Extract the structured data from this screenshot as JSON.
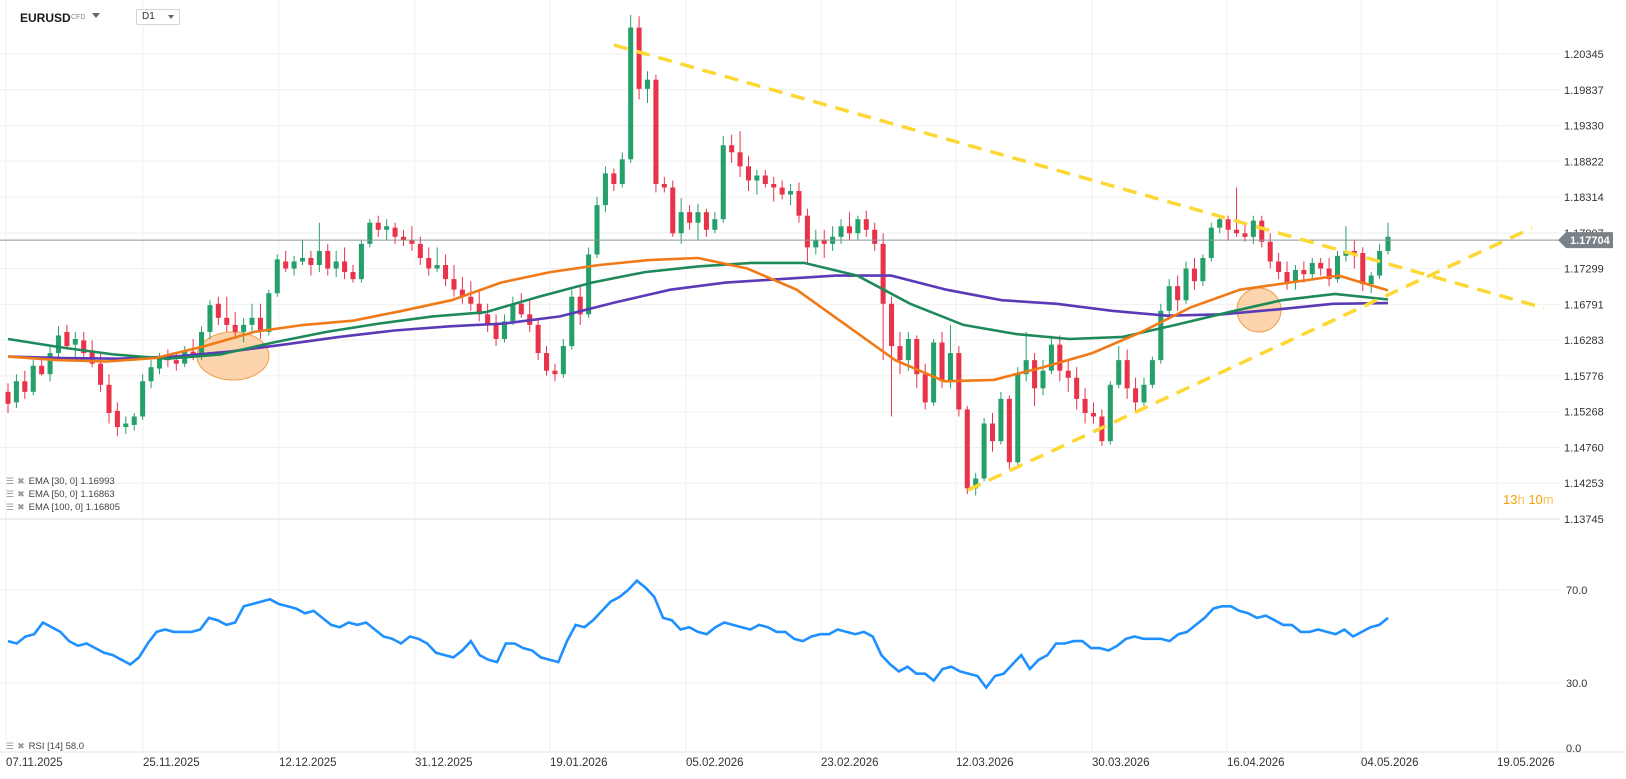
{
  "header": {
    "symbol": "EURUSD",
    "symbol_type": "CFD",
    "timeframe": "D1"
  },
  "price_axis_labels": [
    "1.20345",
    "1.19837",
    "1.19330",
    "1.18822",
    "1.18314",
    "1.17807",
    "1.17299",
    "1.16791",
    "1.16283",
    "1.15776",
    "1.15268",
    "1.14760",
    "1.14253",
    "1.13745"
  ],
  "current_price": {
    "label": "1.17704",
    "value": 1.17704,
    "color": "#7a8288"
  },
  "rsi_axis_labels": [
    "70.0",
    "30.0",
    "0.0"
  ],
  "date_labels": [
    "07.11.2025",
    "25.11.2025",
    "12.12.2025",
    "31.12.2025",
    "19.01.2026",
    "05.02.2026",
    "23.02.2026",
    "12.03.2026",
    "30.03.2026",
    "16.04.2026",
    "04.05.2026",
    "19.05.2026"
  ],
  "legend": {
    "ema30": "EMA [30, 0] 1.16993",
    "ema50": "EMA [50, 0] 1.16863",
    "ema100": "EMA [100, 0] 1.16805",
    "rsi": "RSI [14] 58.0"
  },
  "countdown": {
    "hours": "13",
    "h": "h",
    "minutes": "10",
    "m": "m"
  },
  "colors": {
    "up": "#26a06b",
    "down": "#e8334a",
    "ema30": "#f07a17",
    "ema50": "#1e8a5c",
    "ema100": "#5b3ab8",
    "rsi": "#1e90ff",
    "trend": "#fdd835",
    "highlight": "#f9b26b"
  },
  "chart_data": {
    "type": "candlestick",
    "symbol": "EURUSD",
    "timeframe": "D1",
    "ylim": [
      1.13745,
      1.20345
    ],
    "ohlc": [
      [
        1.1555,
        1.1567,
        1.1525,
        1.1538
      ],
      [
        1.154,
        1.158,
        1.1532,
        1.157
      ],
      [
        1.157,
        1.1585,
        1.1545,
        1.1555
      ],
      [
        1.1555,
        1.16,
        1.155,
        1.1592
      ],
      [
        1.1592,
        1.1602,
        1.1578,
        1.158
      ],
      [
        1.158,
        1.162,
        1.157,
        1.161
      ],
      [
        1.161,
        1.1648,
        1.16,
        1.1635
      ],
      [
        1.164,
        1.165,
        1.1615,
        1.162
      ],
      [
        1.1622,
        1.164,
        1.16,
        1.163
      ],
      [
        1.1628,
        1.164,
        1.1605,
        1.161
      ],
      [
        1.1612,
        1.1628,
        1.159,
        1.1595
      ],
      [
        1.1595,
        1.161,
        1.1555,
        1.1565
      ],
      [
        1.1565,
        1.158,
        1.151,
        1.1525
      ],
      [
        1.1528,
        1.154,
        1.1492,
        1.1505
      ],
      [
        1.1505,
        1.152,
        1.1495,
        1.151
      ],
      [
        1.1508,
        1.1525,
        1.15,
        1.152
      ],
      [
        1.152,
        1.158,
        1.1515,
        1.157
      ],
      [
        1.157,
        1.16,
        1.156,
        1.159
      ],
      [
        1.1588,
        1.161,
        1.158,
        1.1605
      ],
      [
        1.1605,
        1.1615,
        1.159,
        1.16
      ],
      [
        1.16,
        1.161,
        1.1585,
        1.1595
      ],
      [
        1.1595,
        1.162,
        1.159,
        1.1612
      ],
      [
        1.1612,
        1.163,
        1.16,
        1.1605
      ],
      [
        1.1605,
        1.1648,
        1.16,
        1.164
      ],
      [
        1.164,
        1.1685,
        1.163,
        1.1678
      ],
      [
        1.168,
        1.169,
        1.165,
        1.166
      ],
      [
        1.166,
        1.169,
        1.164,
        1.165
      ],
      [
        1.165,
        1.1668,
        1.163,
        1.164
      ],
      [
        1.164,
        1.166,
        1.1625,
        1.165
      ],
      [
        1.165,
        1.168,
        1.164,
        1.166
      ],
      [
        1.166,
        1.168,
        1.163,
        1.164
      ],
      [
        1.164,
        1.17,
        1.1635,
        1.1695
      ],
      [
        1.1695,
        1.175,
        1.169,
        1.1743
      ],
      [
        1.174,
        1.1755,
        1.1725,
        1.173
      ],
      [
        1.173,
        1.1748,
        1.172,
        1.174
      ],
      [
        1.174,
        1.177,
        1.1735,
        1.1745
      ],
      [
        1.1745,
        1.1755,
        1.172,
        1.1735
      ],
      [
        1.1735,
        1.1795,
        1.1725,
        1.1755
      ],
      [
        1.1755,
        1.1765,
        1.172,
        1.173
      ],
      [
        1.173,
        1.1755,
        1.1718,
        1.174
      ],
      [
        1.174,
        1.176,
        1.1715,
        1.1725
      ],
      [
        1.1725,
        1.1735,
        1.171,
        1.1715
      ],
      [
        1.1715,
        1.177,
        1.171,
        1.1765
      ],
      [
        1.1765,
        1.18,
        1.176,
        1.1795
      ],
      [
        1.1795,
        1.1805,
        1.1775,
        1.1785
      ],
      [
        1.1785,
        1.18,
        1.177,
        1.179
      ],
      [
        1.1788,
        1.1795,
        1.1765,
        1.1775
      ],
      [
        1.1775,
        1.1785,
        1.1762,
        1.177
      ],
      [
        1.177,
        1.179,
        1.1755,
        1.1765
      ],
      [
        1.1765,
        1.1775,
        1.1735,
        1.1745
      ],
      [
        1.1745,
        1.176,
        1.172,
        1.173
      ],
      [
        1.173,
        1.176,
        1.1725,
        1.1735
      ],
      [
        1.1735,
        1.175,
        1.1705,
        1.1715
      ],
      [
        1.1715,
        1.1735,
        1.169,
        1.17
      ],
      [
        1.17,
        1.1718,
        1.168,
        1.169
      ],
      [
        1.169,
        1.1712,
        1.167,
        1.168
      ],
      [
        1.168,
        1.17,
        1.1655,
        1.1665
      ],
      [
        1.1665,
        1.168,
        1.164,
        1.165
      ],
      [
        1.165,
        1.1665,
        1.162,
        1.163
      ],
      [
        1.163,
        1.1665,
        1.1625,
        1.1655
      ],
      [
        1.1655,
        1.169,
        1.165,
        1.168
      ],
      [
        1.168,
        1.1695,
        1.166,
        1.1665
      ],
      [
        1.1665,
        1.1685,
        1.164,
        1.165
      ],
      [
        1.165,
        1.166,
        1.16,
        1.161
      ],
      [
        1.161,
        1.162,
        1.1578,
        1.1585
      ],
      [
        1.1585,
        1.1595,
        1.157,
        1.158
      ],
      [
        1.158,
        1.163,
        1.1575,
        1.162
      ],
      [
        1.162,
        1.17,
        1.1615,
        1.169
      ],
      [
        1.169,
        1.1705,
        1.165,
        1.1665
      ],
      [
        1.1665,
        1.176,
        1.166,
        1.175
      ],
      [
        1.175,
        1.1832,
        1.1745,
        1.182
      ],
      [
        1.182,
        1.1875,
        1.181,
        1.1865
      ],
      [
        1.1865,
        1.1872,
        1.184,
        1.185
      ],
      [
        1.185,
        1.1895,
        1.1845,
        1.1885
      ],
      [
        1.1885,
        1.209,
        1.188,
        1.2072
      ],
      [
        1.2072,
        1.2088,
        1.197,
        1.1985
      ],
      [
        1.1985,
        1.201,
        1.1965,
        1.1998
      ],
      [
        1.1998,
        1.2005,
        1.1838,
        1.185
      ],
      [
        1.185,
        1.186,
        1.1838,
        1.1845
      ],
      [
        1.1845,
        1.1855,
        1.1775,
        1.178
      ],
      [
        1.178,
        1.183,
        1.1765,
        1.181
      ],
      [
        1.181,
        1.182,
        1.1785,
        1.1795
      ],
      [
        1.1795,
        1.1822,
        1.177,
        1.181
      ],
      [
        1.181,
        1.1815,
        1.1775,
        1.1785
      ],
      [
        1.1785,
        1.181,
        1.178,
        1.18
      ],
      [
        1.18,
        1.1918,
        1.1795,
        1.1905
      ],
      [
        1.1905,
        1.192,
        1.188,
        1.1895
      ],
      [
        1.1895,
        1.1925,
        1.186,
        1.1875
      ],
      [
        1.1875,
        1.189,
        1.184,
        1.1855
      ],
      [
        1.1855,
        1.187,
        1.1835,
        1.1862
      ],
      [
        1.1862,
        1.187,
        1.1845,
        1.185
      ],
      [
        1.185,
        1.186,
        1.1825,
        1.1845
      ],
      [
        1.1845,
        1.1855,
        1.1828,
        1.1835
      ],
      [
        1.1835,
        1.185,
        1.182,
        1.184
      ],
      [
        1.184,
        1.1852,
        1.1795,
        1.1805
      ],
      [
        1.1805,
        1.1815,
        1.1735,
        1.176
      ],
      [
        1.176,
        1.1785,
        1.175,
        1.177
      ],
      [
        1.177,
        1.1785,
        1.1745,
        1.1765
      ],
      [
        1.1765,
        1.179,
        1.1755,
        1.1775
      ],
      [
        1.1775,
        1.18,
        1.1765,
        1.179
      ],
      [
        1.179,
        1.181,
        1.177,
        1.178
      ],
      [
        1.178,
        1.1805,
        1.177,
        1.18
      ],
      [
        1.18,
        1.1812,
        1.1775,
        1.1785
      ],
      [
        1.1785,
        1.1795,
        1.1755,
        1.1765
      ],
      [
        1.1765,
        1.178,
        1.16,
        1.168
      ],
      [
        1.168,
        1.169,
        1.152,
        1.162
      ],
      [
        1.162,
        1.164,
        1.158,
        1.16
      ],
      [
        1.16,
        1.164,
        1.1585,
        1.163
      ],
      [
        1.163,
        1.1635,
        1.156,
        1.158
      ],
      [
        1.158,
        1.1595,
        1.153,
        1.154
      ],
      [
        1.154,
        1.163,
        1.1535,
        1.1625
      ],
      [
        1.1625,
        1.164,
        1.156,
        1.157
      ],
      [
        1.157,
        1.165,
        1.156,
        1.161
      ],
      [
        1.161,
        1.162,
        1.152,
        1.153
      ],
      [
        1.153,
        1.1535,
        1.141,
        1.1418
      ],
      [
        1.1418,
        1.144,
        1.1408,
        1.1432
      ],
      [
        1.1432,
        1.1518,
        1.1428,
        1.151
      ],
      [
        1.151,
        1.1525,
        1.147,
        1.1485
      ],
      [
        1.1485,
        1.1555,
        1.148,
        1.1545
      ],
      [
        1.1545,
        1.155,
        1.1445,
        1.1455
      ],
      [
        1.1455,
        1.159,
        1.145,
        1.158
      ],
      [
        1.158,
        1.164,
        1.157,
        1.16
      ],
      [
        1.16,
        1.161,
        1.1535,
        1.156
      ],
      [
        1.156,
        1.16,
        1.155,
        1.1585
      ],
      [
        1.1585,
        1.1635,
        1.158,
        1.1622
      ],
      [
        1.1622,
        1.1635,
        1.157,
        1.1585
      ],
      [
        1.1585,
        1.16,
        1.1555,
        1.1575
      ],
      [
        1.1575,
        1.159,
        1.153,
        1.1545
      ],
      [
        1.1545,
        1.156,
        1.151,
        1.1525
      ],
      [
        1.1525,
        1.154,
        1.151,
        1.152
      ],
      [
        1.152,
        1.153,
        1.1478,
        1.1485
      ],
      [
        1.1485,
        1.157,
        1.148,
        1.1565
      ],
      [
        1.1565,
        1.162,
        1.156,
        1.16
      ],
      [
        1.16,
        1.1615,
        1.1545,
        1.156
      ],
      [
        1.156,
        1.1575,
        1.1525,
        1.154
      ],
      [
        1.154,
        1.1575,
        1.1535,
        1.1565
      ],
      [
        1.1565,
        1.1605,
        1.156,
        1.16
      ],
      [
        1.16,
        1.168,
        1.1595,
        1.167
      ],
      [
        1.167,
        1.1715,
        1.166,
        1.1705
      ],
      [
        1.1705,
        1.172,
        1.167,
        1.1685
      ],
      [
        1.1685,
        1.174,
        1.168,
        1.173
      ],
      [
        1.173,
        1.1745,
        1.17,
        1.1712
      ],
      [
        1.1712,
        1.175,
        1.1705,
        1.1745
      ],
      [
        1.1745,
        1.1795,
        1.174,
        1.1788
      ],
      [
        1.1788,
        1.1805,
        1.178,
        1.18
      ],
      [
        1.18,
        1.1805,
        1.177,
        1.1785
      ],
      [
        1.1785,
        1.1845,
        1.1775,
        1.178
      ],
      [
        1.178,
        1.1795,
        1.1768,
        1.1775
      ],
      [
        1.1775,
        1.1805,
        1.1765,
        1.1798
      ],
      [
        1.1798,
        1.1805,
        1.176,
        1.1768
      ],
      [
        1.1768,
        1.178,
        1.173,
        1.174
      ],
      [
        1.174,
        1.1752,
        1.1715,
        1.1725
      ],
      [
        1.1725,
        1.174,
        1.17,
        1.171
      ],
      [
        1.171,
        1.1735,
        1.17,
        1.1728
      ],
      [
        1.1728,
        1.174,
        1.171,
        1.1722
      ],
      [
        1.1722,
        1.1745,
        1.1715,
        1.1738
      ],
      [
        1.1738,
        1.1745,
        1.172,
        1.173
      ],
      [
        1.173,
        1.1745,
        1.1705,
        1.1715
      ],
      [
        1.1715,
        1.1755,
        1.171,
        1.1748
      ],
      [
        1.1748,
        1.179,
        1.174,
        1.1755
      ],
      [
        1.1755,
        1.177,
        1.173,
        1.1752
      ],
      [
        1.1752,
        1.176,
        1.1698,
        1.1708
      ],
      [
        1.1708,
        1.1725,
        1.1695,
        1.172
      ],
      [
        1.172,
        1.1765,
        1.1715,
        1.1755
      ],
      [
        1.1755,
        1.1795,
        1.175,
        1.1775
      ]
    ],
    "ema30": [
      1.1605,
      1.16,
      1.1598,
      1.1603,
      1.162,
      1.164,
      1.165,
      1.1656,
      1.167,
      1.1685,
      1.171,
      1.1725,
      1.1735,
      1.1742,
      1.1745,
      1.173,
      1.17,
      1.165,
      1.16,
      1.157,
      1.1572,
      1.159,
      1.161,
      1.164,
      1.1675,
      1.17,
      1.171,
      1.172,
      1.1699
    ],
    "ema50": [
      1.163,
      1.1618,
      1.1608,
      1.1602,
      1.1608,
      1.1625,
      1.164,
      1.1652,
      1.1662,
      1.1668,
      1.169,
      1.171,
      1.1725,
      1.1733,
      1.1738,
      1.1738,
      1.172,
      1.168,
      1.165,
      1.1637,
      1.163,
      1.1633,
      1.165,
      1.1668,
      1.1685,
      1.1694,
      1.1686
    ],
    "ema100": [
      1.1605,
      1.1603,
      1.1602,
      1.1605,
      1.1612,
      1.1622,
      1.1633,
      1.1642,
      1.1648,
      1.1652,
      1.1662,
      1.1682,
      1.17,
      1.171,
      1.1715,
      1.172,
      1.172,
      1.17,
      1.1685,
      1.168,
      1.167,
      1.1663,
      1.1665,
      1.1672,
      1.168,
      1.1681
    ],
    "rsi": [
      48,
      47,
      50,
      51,
      56,
      54,
      52,
      48,
      46,
      47,
      45,
      43,
      42,
      40,
      38,
      41,
      47,
      52,
      53,
      52,
      52,
      52,
      53,
      58,
      57,
      55,
      56,
      63,
      64,
      65,
      66,
      64,
      63,
      62,
      60,
      61,
      58,
      55,
      54,
      56,
      55,
      56,
      53,
      50,
      49,
      47,
      50,
      49,
      47,
      43,
      42,
      41,
      44,
      48,
      42,
      40,
      39,
      47,
      47,
      45,
      44,
      41,
      40,
      39,
      48,
      55,
      54,
      57,
      61,
      65,
      67,
      70,
      74,
      71,
      67,
      58,
      57,
      53,
      54,
      52,
      51,
      54,
      56,
      55,
      54,
      53,
      55,
      54,
      52,
      52,
      49,
      48,
      50,
      51,
      51,
      53,
      52,
      51,
      52,
      50,
      42,
      38,
      35,
      37,
      34,
      34,
      31,
      36,
      37,
      35,
      34,
      33,
      28,
      33,
      34,
      38,
      42,
      36,
      40,
      42,
      47,
      47,
      48,
      48,
      45,
      45,
      44,
      46,
      49,
      50,
      49,
      49,
      49,
      48,
      51,
      52,
      55,
      58,
      62,
      63,
      63,
      61,
      60,
      58,
      59,
      57,
      55,
      55,
      52,
      52,
      53,
      52,
      51,
      53,
      50,
      52,
      54,
      55,
      58
    ]
  }
}
